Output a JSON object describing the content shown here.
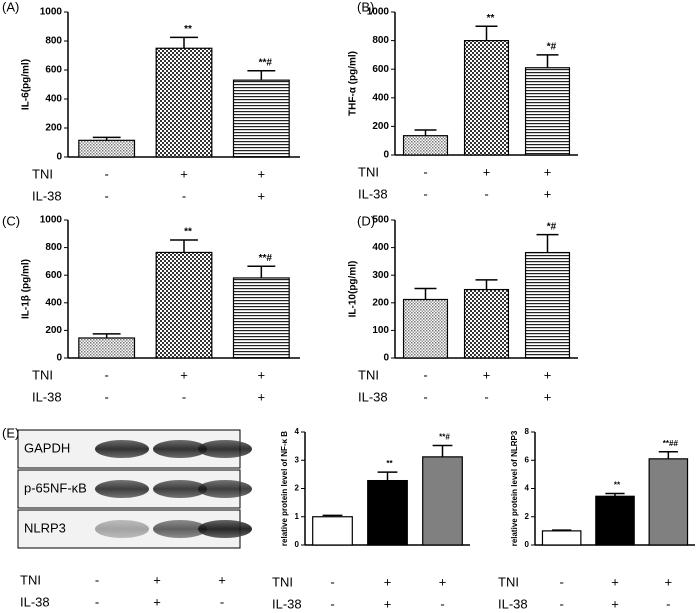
{
  "chart_data": [
    {
      "type": "bar",
      "panel_label": "(A)",
      "ylabel": "IL-6(pg/ml)",
      "ylim": [
        0,
        1000
      ],
      "yticks": [
        0,
        200,
        400,
        600,
        800,
        1000
      ],
      "values": [
        115,
        750,
        530
      ],
      "errors": [
        20,
        75,
        65
      ],
      "annotations": [
        null,
        "**",
        "**#"
      ],
      "patterns": [
        "dots",
        "checker",
        "stripes"
      ],
      "conditions": [
        {
          "name": "TNI",
          "signs": [
            "-",
            "+",
            "+"
          ]
        },
        {
          "name": "IL-38",
          "signs": [
            "-",
            "-",
            "+"
          ]
        }
      ]
    },
    {
      "type": "bar",
      "panel_label": "(B)",
      "ylabel": "THF-α (pg/ml)",
      "ylim": [
        0,
        1000
      ],
      "yticks": [
        0,
        200,
        400,
        600,
        800,
        1000
      ],
      "values": [
        135,
        800,
        610
      ],
      "errors": [
        40,
        100,
        90
      ],
      "annotations": [
        null,
        "**",
        "*#"
      ],
      "patterns": [
        "dots",
        "checker",
        "stripes"
      ],
      "conditions": [
        {
          "name": "TNI",
          "signs": [
            "-",
            "+",
            "+"
          ]
        },
        {
          "name": "IL-38",
          "signs": [
            "-",
            "-",
            "+"
          ]
        }
      ]
    },
    {
      "type": "bar",
      "panel_label": "(C)",
      "ylabel": "IL-1β (pg/ml)",
      "ylim": [
        0,
        1000
      ],
      "yticks": [
        0,
        200,
        400,
        600,
        800,
        1000
      ],
      "values": [
        145,
        765,
        580
      ],
      "errors": [
        30,
        90,
        85
      ],
      "annotations": [
        null,
        "**",
        "**#"
      ],
      "patterns": [
        "dots",
        "checker",
        "stripes"
      ],
      "conditions": [
        {
          "name": "TNI",
          "signs": [
            "-",
            "+",
            "+"
          ]
        },
        {
          "name": "IL-38",
          "signs": [
            "-",
            "-",
            "+"
          ]
        }
      ]
    },
    {
      "type": "bar",
      "panel_label": "(D)",
      "ylabel": "IL-10(pg/ml)",
      "ylim": [
        0,
        500
      ],
      "yticks": [
        0,
        100,
        200,
        300,
        400,
        500
      ],
      "values": [
        212,
        248,
        382
      ],
      "errors": [
        40,
        35,
        65
      ],
      "annotations": [
        null,
        null,
        "*#"
      ],
      "patterns": [
        "dots",
        "checker",
        "stripes"
      ],
      "conditions": [
        {
          "name": "TNI",
          "signs": [
            "-",
            "+",
            "+"
          ]
        },
        {
          "name": "IL-38",
          "signs": [
            "-",
            "-",
            "+"
          ]
        }
      ]
    },
    {
      "type": "bar",
      "ylabel": "relative protein level of NF-κ B",
      "ylim": [
        0,
        4
      ],
      "yticks": [
        0,
        1,
        2,
        3,
        4
      ],
      "values": [
        1.0,
        2.28,
        3.12
      ],
      "errors": [
        0.05,
        0.3,
        0.4
      ],
      "annotations": [
        null,
        "**",
        "**#"
      ],
      "colors": [
        "#ffffff",
        "#000000",
        "#808080"
      ],
      "conditions": [
        {
          "name": "TNI",
          "signs": [
            "-",
            "+",
            "+"
          ]
        },
        {
          "name": "IL-38",
          "signs": [
            "-",
            "+",
            "-"
          ]
        }
      ]
    },
    {
      "type": "bar",
      "ylabel": "relative protein level of NLRP3",
      "ylim": [
        0,
        8
      ],
      "yticks": [
        0,
        2,
        4,
        6,
        8
      ],
      "values": [
        1.0,
        3.45,
        6.1
      ],
      "errors": [
        0.05,
        0.2,
        0.5
      ],
      "annotations": [
        null,
        "**",
        "**##"
      ],
      "colors": [
        "#ffffff",
        "#000000",
        "#808080"
      ],
      "conditions": [
        {
          "name": "TNI",
          "signs": [
            "-",
            "+",
            "+"
          ]
        },
        {
          "name": "IL-38",
          "signs": [
            "-",
            "+",
            "-"
          ]
        }
      ]
    }
  ],
  "blot": {
    "panel_label": "(E)",
    "rows": [
      "GAPDH",
      "p-65NF-κB",
      "NLRP3"
    ],
    "conditions": [
      {
        "name": "TNI",
        "signs": [
          "-",
          "+",
          "+"
        ]
      },
      {
        "name": "IL-38",
        "signs": [
          "-",
          "+",
          "-"
        ]
      }
    ]
  }
}
